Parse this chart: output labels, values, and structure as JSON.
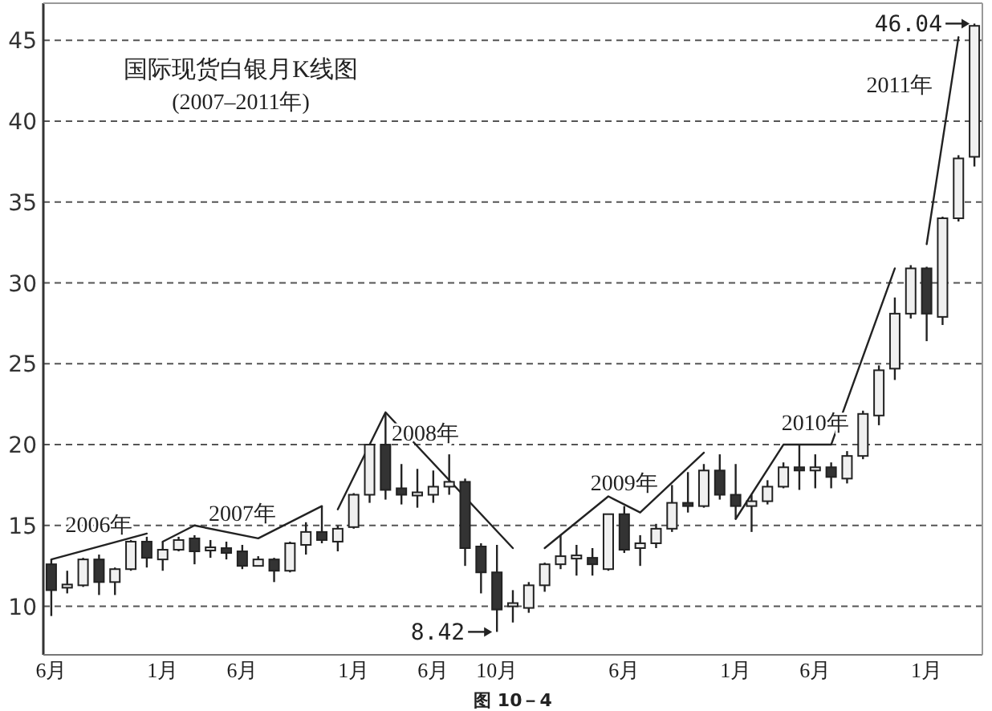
{
  "chart_data": {
    "type": "candlestick",
    "title": "国际现货白银月K线图",
    "subtitle": "(2007–2011年)",
    "categories": [
      "6月",
      null,
      null,
      null,
      null,
      null,
      null,
      "1月",
      null,
      null,
      null,
      null,
      "6月",
      null,
      null,
      null,
      null,
      null,
      null,
      "1月",
      null,
      null,
      null,
      null,
      "6月",
      null,
      null,
      null,
      "10月",
      null,
      null,
      null,
      null,
      null,
      null,
      null,
      "6月",
      null,
      null,
      null,
      null,
      null,
      null,
      "1月",
      null,
      null,
      null,
      null,
      "6月",
      null,
      null,
      null,
      null,
      null,
      null,
      "1月",
      null,
      null,
      null
    ],
    "ohlc": [
      [
        12.6,
        12.9,
        9.4,
        11.0
      ],
      [
        11.2,
        12.2,
        10.8,
        11.3
      ],
      [
        11.3,
        13.0,
        11.2,
        12.9
      ],
      [
        12.9,
        13.2,
        10.7,
        11.5
      ],
      [
        11.5,
        12.4,
        10.7,
        12.3
      ],
      [
        12.3,
        14.1,
        12.2,
        14.0
      ],
      [
        14.0,
        14.3,
        12.4,
        13.0
      ],
      [
        12.9,
        14.0,
        12.2,
        13.5
      ],
      [
        13.5,
        14.3,
        13.4,
        14.1
      ],
      [
        14.2,
        14.4,
        12.6,
        13.4
      ],
      [
        13.5,
        14.1,
        13.0,
        13.6
      ],
      [
        13.6,
        14.0,
        12.9,
        13.3
      ],
      [
        13.4,
        13.8,
        12.3,
        12.5
      ],
      [
        12.5,
        13.1,
        12.5,
        12.9
      ],
      [
        12.9,
        13.0,
        11.5,
        12.2
      ],
      [
        12.2,
        14.0,
        12.1,
        13.9
      ],
      [
        13.8,
        15.2,
        13.2,
        14.6
      ],
      [
        14.6,
        16.2,
        13.9,
        14.1
      ],
      [
        14.0,
        15.0,
        13.4,
        14.8
      ],
      [
        14.9,
        17.0,
        14.8,
        16.9
      ],
      [
        16.9,
        20.0,
        16.4,
        20.0
      ],
      [
        20.0,
        21.9,
        16.6,
        17.2
      ],
      [
        17.3,
        18.8,
        16.3,
        16.9
      ],
      [
        16.9,
        18.5,
        16.1,
        17.0
      ],
      [
        16.9,
        18.4,
        16.4,
        17.4
      ],
      [
        17.4,
        19.4,
        16.9,
        17.7
      ],
      [
        17.7,
        17.9,
        12.5,
        13.6
      ],
      [
        13.7,
        13.9,
        10.8,
        12.1
      ],
      [
        12.1,
        13.8,
        8.42,
        9.8
      ],
      [
        10.0,
        11.0,
        9.0,
        10.2
      ],
      [
        9.9,
        11.5,
        9.6,
        11.3
      ],
      [
        11.3,
        12.7,
        10.9,
        12.6
      ],
      [
        12.6,
        14.4,
        12.3,
        13.1
      ],
      [
        13.0,
        13.8,
        11.9,
        13.1
      ],
      [
        13.0,
        13.6,
        11.9,
        12.6
      ],
      [
        12.3,
        15.7,
        12.2,
        15.7
      ],
      [
        15.7,
        16.2,
        13.3,
        13.5
      ],
      [
        13.6,
        14.4,
        12.5,
        13.9
      ],
      [
        13.9,
        15.1,
        13.6,
        14.8
      ],
      [
        14.8,
        17.5,
        14.6,
        16.4
      ],
      [
        16.4,
        18.3,
        15.8,
        16.2
      ],
      [
        16.2,
        18.8,
        16.1,
        18.4
      ],
      [
        18.4,
        19.4,
        16.6,
        16.9
      ],
      [
        16.9,
        18.8,
        15.4,
        16.2
      ],
      [
        16.2,
        16.9,
        14.6,
        16.5
      ],
      [
        16.5,
        17.8,
        16.3,
        17.4
      ],
      [
        17.4,
        18.9,
        17.3,
        18.6
      ],
      [
        18.6,
        20.0,
        17.2,
        18.4
      ],
      [
        18.4,
        19.4,
        17.3,
        18.6
      ],
      [
        18.6,
        18.9,
        17.3,
        18.0
      ],
      [
        17.9,
        19.6,
        17.6,
        19.3
      ],
      [
        19.3,
        22.1,
        19.1,
        21.9
      ],
      [
        21.8,
        24.9,
        21.2,
        24.6
      ],
      [
        24.7,
        29.1,
        24.0,
        28.1
      ],
      [
        28.1,
        31.1,
        27.8,
        30.9
      ],
      [
        30.9,
        31.0,
        26.4,
        28.1
      ],
      [
        27.9,
        34.1,
        27.4,
        34.0
      ],
      [
        34.0,
        37.9,
        33.8,
        37.7
      ],
      [
        37.8,
        46.04,
        37.2,
        45.9
      ]
    ],
    "series": [
      {
        "type": "line",
        "name": "2006年",
        "color": "#222222",
        "values": [
          12.9,
          null,
          null,
          null,
          null,
          null,
          14.5,
          null,
          null,
          null,
          null,
          null,
          null,
          null,
          null,
          null,
          null,
          null,
          null,
          null,
          null,
          null,
          null,
          null,
          null,
          null,
          null,
          null,
          null,
          null,
          null,
          null,
          null,
          null,
          null,
          null,
          null,
          null,
          null,
          null,
          null,
          null,
          null,
          null,
          null,
          null,
          null,
          null,
          null,
          null,
          null,
          null,
          null,
          null,
          null,
          null,
          null,
          null,
          null
        ]
      },
      {
        "type": "line",
        "name": "2007年",
        "color": "#222222",
        "values": [
          null,
          null,
          null,
          null,
          null,
          null,
          null,
          14.0,
          null,
          15.0,
          null,
          null,
          null,
          14.2,
          null,
          null,
          null,
          16.2,
          null,
          null,
          null,
          null,
          null,
          null,
          null,
          null,
          null,
          null,
          null,
          null,
          null,
          null,
          null,
          null,
          null,
          null,
          null,
          null,
          null,
          null,
          null,
          null,
          null,
          null,
          null,
          null,
          null,
          null,
          null,
          null,
          null,
          null,
          null,
          null,
          null,
          null,
          null,
          null,
          null
        ]
      },
      {
        "type": "line",
        "name": "2008年",
        "color": "#222222",
        "values": [
          null,
          null,
          null,
          null,
          null,
          null,
          null,
          null,
          null,
          null,
          null,
          null,
          null,
          null,
          null,
          null,
          null,
          null,
          16.0,
          null,
          null,
          22.0,
          null,
          null,
          null,
          null,
          null,
          null,
          null,
          13.6,
          null,
          null,
          null,
          null,
          null,
          null,
          null,
          null,
          null,
          null,
          null,
          null,
          null,
          null,
          null,
          null,
          null,
          null,
          null,
          null,
          null,
          null,
          null,
          null,
          null,
          null,
          null,
          null,
          null
        ]
      },
      {
        "type": "line",
        "name": "2009年",
        "color": "#222222",
        "values": [
          null,
          null,
          null,
          null,
          null,
          null,
          null,
          null,
          null,
          null,
          null,
          null,
          null,
          null,
          null,
          null,
          null,
          null,
          null,
          null,
          null,
          null,
          null,
          null,
          null,
          null,
          null,
          null,
          null,
          null,
          null,
          13.6,
          null,
          null,
          null,
          16.8,
          null,
          15.8,
          null,
          null,
          null,
          19.5,
          null,
          null,
          null,
          null,
          null,
          null,
          null,
          null,
          null,
          null,
          null,
          null,
          null,
          null,
          null,
          null,
          null
        ]
      },
      {
        "type": "line",
        "name": "2010年",
        "color": "#222222",
        "values": [
          null,
          null,
          null,
          null,
          null,
          null,
          null,
          null,
          null,
          null,
          null,
          null,
          null,
          null,
          null,
          null,
          null,
          null,
          null,
          null,
          null,
          null,
          null,
          null,
          null,
          null,
          null,
          null,
          null,
          null,
          null,
          null,
          null,
          null,
          null,
          null,
          null,
          null,
          null,
          null,
          null,
          null,
          null,
          15.4,
          null,
          null,
          20.0,
          null,
          null,
          20.0,
          null,
          null,
          null,
          30.9,
          null,
          null,
          null,
          null,
          null
        ]
      },
      {
        "type": "line",
        "name": "2011年",
        "color": "#222222",
        "values": [
          null,
          null,
          null,
          null,
          null,
          null,
          null,
          null,
          null,
          null,
          null,
          null,
          null,
          null,
          null,
          null,
          null,
          null,
          null,
          null,
          null,
          null,
          null,
          null,
          null,
          null,
          null,
          null,
          null,
          null,
          null,
          null,
          null,
          null,
          null,
          null,
          null,
          null,
          null,
          null,
          null,
          null,
          null,
          null,
          null,
          null,
          null,
          null,
          null,
          null,
          null,
          null,
          null,
          null,
          null,
          32.4,
          null,
          45.2,
          null
        ]
      }
    ],
    "ylim": [
      7,
      47.3
    ],
    "yticks": [
      10,
      15,
      20,
      25,
      30,
      35,
      40,
      45
    ],
    "grid": "y",
    "annotations": [
      "8.42",
      "46.04",
      "图 10－4"
    ]
  }
}
